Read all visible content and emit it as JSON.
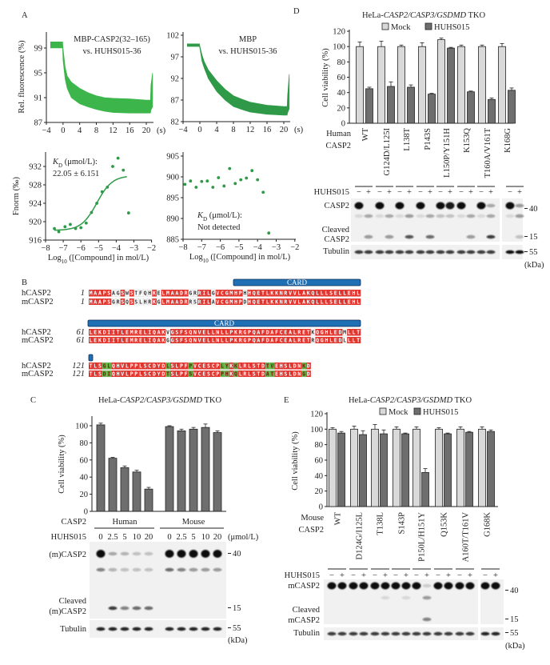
{
  "panel_labels": [
    "A",
    "B",
    "C",
    "D",
    "E"
  ],
  "chart_data": [
    {
      "id": "A1",
      "type": "area",
      "title": [
        "MBP-CASP2(32–165)",
        "vs. HUHS015-36"
      ],
      "ylabel": "Rel. fluorescence (%)",
      "xunit": "(s)",
      "xticks": [
        -4,
        0,
        4,
        8,
        12,
        16,
        20
      ],
      "yticks": [
        87,
        91,
        95,
        99
      ],
      "xlim": [
        -4,
        21.5
      ],
      "ylim": [
        87,
        101.5
      ],
      "color": "#3cb54a",
      "x": [
        -3,
        -0.1,
        0,
        0.5,
        1,
        2,
        4,
        6,
        8,
        10,
        12,
        16,
        20,
        21,
        21.1,
        21.5
      ],
      "upper": [
        100,
        100,
        99,
        96,
        94.5,
        93.5,
        92.5,
        91.8,
        91.3,
        91,
        90.9,
        90.8,
        90.6,
        90.6,
        93,
        95
      ],
      "lower": [
        99,
        99,
        97,
        94,
        92.5,
        91,
        90,
        89.5,
        89.1,
        88.8,
        88.6,
        88.5,
        88.5,
        88.5,
        89,
        89.5
      ]
    },
    {
      "id": "A2",
      "type": "area",
      "title": [
        "MBP",
        "vs. HUHS015-36"
      ],
      "xunit": "(s)",
      "xticks": [
        -4,
        0,
        4,
        8,
        12,
        16,
        20
      ],
      "yticks": [
        82,
        87,
        92,
        97,
        102
      ],
      "xlim": [
        -4,
        21.5
      ],
      "ylim": [
        82,
        102.5
      ],
      "color": "#2e9a48",
      "x": [
        -3,
        -0.1,
        0,
        0.5,
        1,
        2,
        4,
        6,
        8,
        10,
        12,
        16,
        20,
        20.8,
        20.9,
        21.3
      ],
      "upper": [
        100,
        100,
        99.5,
        97.5,
        96,
        94,
        91.5,
        89.5,
        88,
        87.2,
        86.5,
        85.8,
        85.5,
        85.5,
        88,
        93
      ],
      "lower": [
        99.4,
        99.4,
        99,
        96,
        94.5,
        92,
        89,
        87,
        85.5,
        84.8,
        84.2,
        83.7,
        83.5,
        83.5,
        84,
        85
      ]
    },
    {
      "id": "A3",
      "type": "scatter",
      "ylabel": "Fnorm (‰)",
      "xlabel": [
        "Log",
        "10",
        " ([Compound] in mol/L)"
      ],
      "kd_label": [
        "K",
        "D",
        " (μmol/L):"
      ],
      "kd_value": "22.05 ± 6.151",
      "xticks": [
        -8,
        -7,
        -6,
        -5,
        -4,
        -3,
        -2
      ],
      "yticks": [
        916,
        920,
        924,
        928,
        932
      ],
      "xlim": [
        -8,
        -2
      ],
      "ylim": [
        916,
        935
      ],
      "points": [
        [
          -7.5,
          918.5
        ],
        [
          -7.25,
          917.8
        ],
        [
          -6.9,
          918.9
        ],
        [
          -6.6,
          919.4
        ],
        [
          -6.3,
          918.5
        ],
        [
          -6.0,
          918.7
        ],
        [
          -5.7,
          919.7
        ],
        [
          -5.4,
          922
        ],
        [
          -5.1,
          924
        ],
        [
          -4.8,
          926.5
        ],
        [
          -4.5,
          927.5
        ],
        [
          -4.2,
          932
        ],
        [
          -3.9,
          933.8
        ],
        [
          -3.6,
          931.2
        ],
        [
          -3.3,
          921.9
        ]
      ],
      "fit": {
        "bottom": 918.1,
        "top": 930,
        "log_ec50": -5.1,
        "hill": 1,
        "range": [
          -7.5,
          -3.4
        ]
      }
    },
    {
      "id": "A4",
      "type": "scatter",
      "xlabel": [
        "Log",
        "10",
        " ([Compound] in mol/L)"
      ],
      "kd_label": [
        "K",
        "D",
        " (μmol/L):"
      ],
      "kd_value": "Not detected",
      "xticks": [
        -8,
        -7,
        -6,
        -5,
        -4,
        -3,
        -2
      ],
      "yticks": [
        885,
        890,
        895,
        900,
        905
      ],
      "xlim": [
        -8,
        -2
      ],
      "ylim": [
        885,
        905
      ],
      "points": [
        [
          -7.9,
          898.2
        ],
        [
          -7.6,
          899
        ],
        [
          -7.3,
          897.5
        ],
        [
          -7.0,
          898.9
        ],
        [
          -6.7,
          899
        ],
        [
          -6.4,
          897.5
        ],
        [
          -6.1,
          899.8
        ],
        [
          -5.8,
          897.8
        ],
        [
          -5.5,
          902
        ],
        [
          -5.2,
          898.4
        ],
        [
          -4.9,
          899.3
        ],
        [
          -4.6,
          899.7
        ],
        [
          -4.3,
          901.5
        ],
        [
          -4.0,
          899.3
        ],
        [
          -3.7,
          896.3
        ],
        [
          -3.4,
          886.5
        ]
      ]
    },
    {
      "id": "C",
      "type": "bar",
      "title": [
        "HeLa-",
        "CASP2/CASP3/GSDMD",
        " TKO"
      ],
      "ylabel": "Cell viability (%)",
      "yticks": [
        0,
        20,
        40,
        60,
        80,
        100
      ],
      "ylim": [
        0,
        110
      ],
      "group_label": "CASP2",
      "groups": [
        "Human",
        "Mouse"
      ],
      "dose_label": "HUHS015",
      "doses": [
        "0",
        "2.5",
        "5",
        "10",
        "20",
        "0",
        "2.5",
        "5",
        "10",
        "20"
      ],
      "dose_unit": "(μmol/L)",
      "values": [
        101,
        62,
        51,
        46,
        26,
        99,
        94,
        96,
        98,
        92
      ],
      "errors": [
        2,
        1,
        2,
        2,
        2,
        1,
        2,
        2,
        4,
        2
      ],
      "color": "#6e6e6e"
    },
    {
      "id": "D",
      "type": "bar",
      "title": [
        "HeLa-",
        "CASP2/CASP3/GSDMD",
        " TKO"
      ],
      "ylabel": "Cell viability (%)",
      "yticks": [
        0,
        20,
        40,
        60,
        80,
        100,
        120
      ],
      "ylim": [
        0,
        120
      ],
      "legend": [
        "Mock",
        "HUHS015"
      ],
      "row_label": [
        "Human",
        "CASP2"
      ],
      "categories": [
        "WT",
        "G124D/L125I",
        "L138T",
        "P143S",
        "L150P/Y151H",
        "K153Q",
        "T160A/V161T",
        "K168G"
      ],
      "series": [
        {
          "name": "Mock",
          "color": "#d9d9d9",
          "values": [
            100,
            100,
            100,
            100,
            109,
            100,
            100,
            100
          ],
          "errors": [
            6,
            7,
            2,
            5,
            2,
            2,
            2,
            4
          ]
        },
        {
          "name": "HUHS015",
          "color": "#6e6e6e",
          "values": [
            45,
            48,
            47,
            38,
            98,
            41,
            31,
            43
          ],
          "errors": [
            2,
            6,
            3,
            1,
            1,
            1,
            2,
            3
          ]
        }
      ]
    },
    {
      "id": "E",
      "type": "bar",
      "title": [
        "HeLa-",
        "CASP2/CASP3/GSDMD",
        " TKO"
      ],
      "ylabel": "Cell viability (%)",
      "yticks": [
        0,
        20,
        40,
        60,
        80,
        100,
        120
      ],
      "ylim": [
        0,
        120
      ],
      "legend": [
        "Mock",
        "HUHS015"
      ],
      "row_label": [
        "Mouse",
        "CASP2"
      ],
      "categories": [
        "WT",
        "D124G/I125L",
        "T138L",
        "S143P",
        "P150L/H151Y",
        "Q153K",
        "A160T/T161V",
        "G168K"
      ],
      "series": [
        {
          "name": "Mock",
          "color": "#d9d9d9",
          "values": [
            100,
            100,
            100,
            100,
            100,
            100,
            100,
            100
          ],
          "errors": [
            2,
            4,
            6,
            3,
            3,
            2,
            3,
            3
          ]
        },
        {
          "name": "HUHS015",
          "color": "#6e6e6e",
          "values": [
            95,
            93,
            94,
            94,
            44,
            94,
            96,
            97
          ],
          "errors": [
            2,
            5,
            5,
            1,
            5,
            1,
            1,
            2
          ]
        }
      ]
    }
  ],
  "blots": {
    "C": {
      "rows": [
        {
          "label": [
            "(m)CASP2"
          ],
          "marker": "40",
          "intensity": [
            1,
            0.3,
            0.25,
            0.2,
            0.2,
            1,
            1,
            1,
            1,
            1
          ]
        },
        {
          "label": [],
          "intensity": [
            0.5,
            0.25,
            0.2,
            0.2,
            0.2,
            0.6,
            0.5,
            0.4,
            0.4,
            0.4
          ]
        },
        {
          "label": [
            "Cleaved",
            "(m)CASP2"
          ],
          "marker": "15",
          "intensity": [
            0,
            0.8,
            0.5,
            0.6,
            0.6,
            0,
            0,
            0,
            0,
            0
          ]
        },
        {
          "label": [
            "Tubulin"
          ],
          "marker": "55",
          "intensity": [
            0.9,
            0.9,
            0.9,
            0.9,
            0.9,
            0.9,
            0.9,
            0.9,
            0.9,
            0.9
          ]
        }
      ],
      "kda": "(kDa)"
    },
    "D": {
      "treatment_label": "HUHS015",
      "signs": [
        "−",
        "+"
      ],
      "rows": [
        {
          "label": [
            "CASP2"
          ],
          "marker": "40",
          "intensity": [
            1,
            0,
            1,
            0,
            1,
            0,
            1,
            0,
            1,
            0.95,
            1,
            0,
            1,
            0.3,
            1,
            0.4
          ]
        },
        {
          "label": [],
          "intensity": [
            0.1,
            0.3,
            0.1,
            0.3,
            0.1,
            0.4,
            0.1,
            0.3,
            0.2,
            0.2,
            0.1,
            0.3,
            0.1,
            0.3,
            0.1,
            0.4
          ]
        },
        {
          "label": [
            "Cleaved",
            "CASP2"
          ],
          "marker": "15",
          "intensity": [
            0,
            0.4,
            0,
            0.4,
            0,
            0.7,
            0,
            0.6,
            0,
            0,
            0,
            0.4,
            0,
            0.8,
            0,
            0.2
          ]
        },
        {
          "label": [
            "Tubulin"
          ],
          "marker": "55",
          "intensity": [
            0.8,
            0.8,
            0.8,
            0.8,
            0.8,
            0.8,
            0.8,
            0.8,
            0.8,
            0.8,
            0.8,
            0.8,
            0.8,
            0.8,
            1,
            1
          ]
        }
      ],
      "kda": "(kDa)"
    },
    "E": {
      "treatment_label": "HUHS015",
      "signs": [
        "−",
        "+"
      ],
      "rows": [
        {
          "label": [
            "mCASP2"
          ],
          "marker": "40",
          "intensity": [
            1,
            1,
            1,
            1,
            1,
            1,
            1,
            1,
            1,
            0.15,
            1,
            1,
            1,
            1,
            1,
            1
          ]
        },
        {
          "label": [],
          "intensity": [
            0,
            0,
            0,
            0,
            0,
            0.1,
            0,
            0.1,
            0,
            0.4,
            0,
            0,
            0,
            0,
            0,
            0
          ]
        },
        {
          "label": [
            "Cleaved",
            "mCASP2"
          ],
          "marker": "15",
          "intensity": [
            0,
            0,
            0,
            0,
            0,
            0,
            0,
            0,
            0,
            0.5,
            0,
            0,
            0,
            0,
            0,
            0
          ]
        },
        {
          "label": [
            "Tubulin"
          ],
          "marker": "55",
          "intensity": [
            0.8,
            0.8,
            0.8,
            0.8,
            0.8,
            0.8,
            0.8,
            0.8,
            0.8,
            0.8,
            0.8,
            0.8,
            0.8,
            0.8,
            0.9,
            0.9
          ]
        }
      ],
      "kda": "(kDa)"
    }
  },
  "alignment": {
    "domain_label": "CARD",
    "names": [
      "hCASP2",
      "mCASP2"
    ],
    "colors": {
      "identical": "#e0332c",
      "different_cardA": "#ffffff",
      "different_cardB": "#63b043",
      "card": "#1f6fb5"
    },
    "blocks": [
      {
        "start": "1",
        "human": "MAAPSAGSWSTFQHKELMAADRGRRILGVCGMHPHHQETLKKNRVVLAKQLLLSELLEHL",
        "mouse": "MAAPSGRSQSSLHRKGLMAADRRSRILAVCGMHPDHQETLKKNRVVLAKQLLLSELLEHL"
      },
      {
        "start": "61",
        "human": "LEKDIITLEMRELIQAKVGSFSQNVELLNLLPKRGPQAFDAFCEALRETKQGHLEDMLLT",
        "mouse": "LEKDIITLEMRELIQAKGGSFSQNVELLNLLPKRGPQAFDAFCEALRETRQGHLEDLLLT"
      },
      {
        "start": "121",
        "human": "TLSGLQHVLPPLSCDYDLSLPFPVCESCPLYKKLRLSTDTVEHSLDNKD",
        "mouse": "TLSDIQHVLPPLSCDYDTSLPFSVCESCPPHKQLRLSTDATEHSLDNGD"
      }
    ]
  }
}
